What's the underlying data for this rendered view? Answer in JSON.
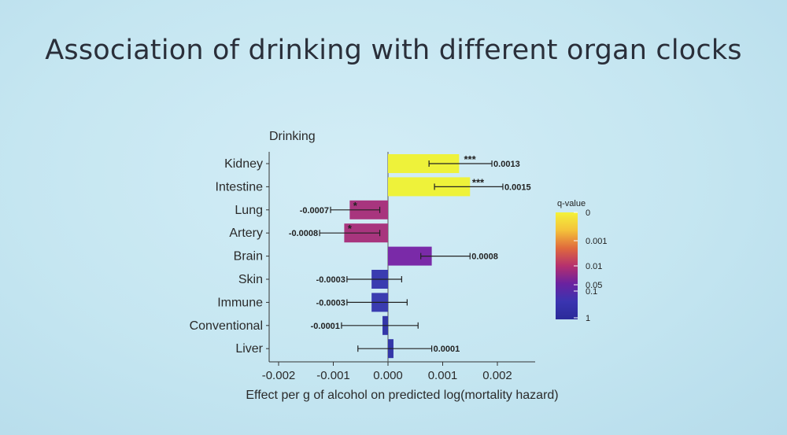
{
  "slide": {
    "title": "Association of drinking with different organ clocks"
  },
  "chart_data": {
    "type": "bar",
    "orientation": "horizontal",
    "facet_title": "Drinking",
    "xlabel": "Effect per g of alcohol on predicted log(mortality hazard)",
    "ylabel": "",
    "xlim": [
      -0.0022,
      0.0027
    ],
    "xticks": [
      -0.002,
      -0.001,
      0.0,
      0.001,
      0.002
    ],
    "xtick_labels": [
      "-0.002",
      "-0.001",
      "0.000",
      "0.001",
      "0.002"
    ],
    "categories": [
      "Kidney",
      "Intestine",
      "Lung",
      "Artery",
      "Brain",
      "Skin",
      "Immune",
      "Conventional",
      "Liver"
    ],
    "values": [
      0.0013,
      0.0015,
      -0.0007,
      -0.0008,
      0.0008,
      -0.0003,
      -0.0003,
      -0.0001,
      0.0001
    ],
    "ci_lower": [
      0.00075,
      0.00085,
      -0.00105,
      -0.00125,
      0.0006,
      -0.00075,
      -0.00075,
      -0.00085,
      -0.00055
    ],
    "ci_upper": [
      0.0019,
      0.0021,
      -0.00015,
      -0.00015,
      0.0015,
      0.00025,
      0.00035,
      0.00055,
      0.0008
    ],
    "value_labels": [
      "0.0013",
      "0.0015",
      "-0.0007",
      "-0.0008",
      "0.0008",
      "-0.0003",
      "-0.0003",
      "-0.0001",
      "0.0001"
    ],
    "significance": [
      "***",
      "***",
      "*",
      "*",
      "",
      "",
      "",
      "",
      ""
    ],
    "q_values": [
      0.0001,
      0.0001,
      0.03,
      0.03,
      0.02,
      0.3,
      0.3,
      0.5,
      0.6
    ],
    "colorbar": {
      "title": "q-value",
      "tick_labels": [
        "0",
        "0.001",
        "0.01",
        "0.05",
        "0.1",
        "1"
      ],
      "colors_bottom_to_top": [
        "#2b2b9a",
        "#3a34b0",
        "#6a22a0",
        "#b5306e",
        "#e06a3c",
        "#f4c23a",
        "#f4f23a"
      ]
    },
    "bar_colors": [
      "#eef23a",
      "#eef23a",
      "#a8357e",
      "#a8357e",
      "#7a2aa8",
      "#3a3cb0",
      "#3a3cb0",
      "#3436a8",
      "#3436a8"
    ],
    "grid": false
  }
}
